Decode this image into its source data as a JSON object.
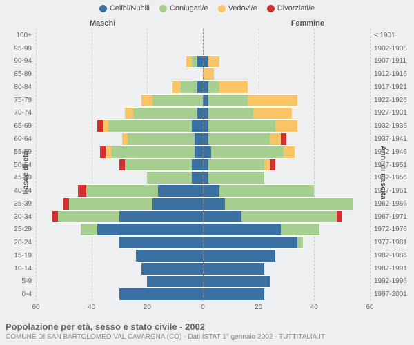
{
  "type": "population-pyramid",
  "background_color": "#edeff0",
  "legend": [
    {
      "label": "Celibi/Nubili",
      "color": "#3a6fa2"
    },
    {
      "label": "Coniugati/e",
      "color": "#a6ce8f"
    },
    {
      "label": "Vedovi/e",
      "color": "#f9c465"
    },
    {
      "label": "Divorziati/e",
      "color": "#d32f2f"
    }
  ],
  "side_labels": {
    "male": "Maschi",
    "female": "Femmine"
  },
  "axis_titles": {
    "left": "Fasce di età",
    "right": "Anni di nascita"
  },
  "age_groups": [
    "100+",
    "95-99",
    "90-94",
    "85-89",
    "80-84",
    "75-79",
    "70-74",
    "65-69",
    "60-64",
    "55-59",
    "50-54",
    "45-49",
    "40-44",
    "35-39",
    "30-34",
    "25-29",
    "20-24",
    "15-19",
    "10-14",
    "5-9",
    "0-4"
  ],
  "birth_years": [
    "≤ 1901",
    "1902-1906",
    "1907-1911",
    "1912-1916",
    "1917-1921",
    "1922-1926",
    "1927-1931",
    "1932-1936",
    "1937-1941",
    "1942-1946",
    "1947-1951",
    "1952-1956",
    "1957-1961",
    "1962-1966",
    "1967-1971",
    "1972-1976",
    "1977-1981",
    "1982-1986",
    "1987-1991",
    "1992-1996",
    "1997-2001"
  ],
  "xmax": 60,
  "xticks": [
    60,
    40,
    20,
    0,
    20,
    40,
    60
  ],
  "grid_positions_pct": [
    0,
    16.67,
    33.33,
    50,
    66.67,
    83.33,
    100
  ],
  "colors": {
    "single": "#3a6fa2",
    "married": "#a6ce8f",
    "widowed": "#f9c465",
    "divorced": "#d32f2f",
    "grid": "#cccccc",
    "centerline": "#888888",
    "text": "#666666"
  },
  "bar_style": {
    "row_gap": 0,
    "fontsize_labels": 10,
    "fontsize_legend": 11
  },
  "data": {
    "male": [
      {
        "s": 0,
        "m": 0,
        "w": 0,
        "d": 0
      },
      {
        "s": 0,
        "m": 0,
        "w": 0,
        "d": 0
      },
      {
        "s": 2,
        "m": 2,
        "w": 2,
        "d": 0
      },
      {
        "s": 0,
        "m": 0,
        "w": 0,
        "d": 0
      },
      {
        "s": 2,
        "m": 6,
        "w": 3,
        "d": 0
      },
      {
        "s": 0,
        "m": 18,
        "w": 4,
        "d": 0
      },
      {
        "s": 2,
        "m": 23,
        "w": 3,
        "d": 0
      },
      {
        "s": 4,
        "m": 30,
        "w": 2,
        "d": 2
      },
      {
        "s": 3,
        "m": 24,
        "w": 2,
        "d": 0
      },
      {
        "s": 3,
        "m": 30,
        "w": 2,
        "d": 2
      },
      {
        "s": 4,
        "m": 24,
        "w": 0,
        "d": 2
      },
      {
        "s": 4,
        "m": 16,
        "w": 0,
        "d": 0
      },
      {
        "s": 16,
        "m": 26,
        "w": 0,
        "d": 3
      },
      {
        "s": 18,
        "m": 30,
        "w": 0,
        "d": 2
      },
      {
        "s": 30,
        "m": 22,
        "w": 0,
        "d": 2
      },
      {
        "s": 38,
        "m": 6,
        "w": 0,
        "d": 0
      },
      {
        "s": 30,
        "m": 0,
        "w": 0,
        "d": 0
      },
      {
        "s": 24,
        "m": 0,
        "w": 0,
        "d": 0
      },
      {
        "s": 22,
        "m": 0,
        "w": 0,
        "d": 0
      },
      {
        "s": 20,
        "m": 0,
        "w": 0,
        "d": 0
      },
      {
        "s": 30,
        "m": 0,
        "w": 0,
        "d": 0
      }
    ],
    "female": [
      {
        "s": 0,
        "m": 0,
        "w": 0,
        "d": 0
      },
      {
        "s": 0,
        "m": 0,
        "w": 0,
        "d": 0
      },
      {
        "s": 2,
        "m": 0,
        "w": 4,
        "d": 0
      },
      {
        "s": 0,
        "m": 0,
        "w": 4,
        "d": 0
      },
      {
        "s": 2,
        "m": 4,
        "w": 10,
        "d": 0
      },
      {
        "s": 2,
        "m": 14,
        "w": 18,
        "d": 0
      },
      {
        "s": 2,
        "m": 16,
        "w": 14,
        "d": 0
      },
      {
        "s": 2,
        "m": 24,
        "w": 8,
        "d": 0
      },
      {
        "s": 2,
        "m": 22,
        "w": 4,
        "d": 2
      },
      {
        "s": 3,
        "m": 26,
        "w": 4,
        "d": 0
      },
      {
        "s": 2,
        "m": 20,
        "w": 2,
        "d": 2
      },
      {
        "s": 2,
        "m": 20,
        "w": 0,
        "d": 0
      },
      {
        "s": 6,
        "m": 34,
        "w": 0,
        "d": 0
      },
      {
        "s": 8,
        "m": 46,
        "w": 0,
        "d": 0
      },
      {
        "s": 14,
        "m": 34,
        "w": 0,
        "d": 2
      },
      {
        "s": 28,
        "m": 14,
        "w": 0,
        "d": 0
      },
      {
        "s": 34,
        "m": 2,
        "w": 0,
        "d": 0
      },
      {
        "s": 26,
        "m": 0,
        "w": 0,
        "d": 0
      },
      {
        "s": 22,
        "m": 0,
        "w": 0,
        "d": 0
      },
      {
        "s": 24,
        "m": 0,
        "w": 0,
        "d": 0
      },
      {
        "s": 22,
        "m": 0,
        "w": 0,
        "d": 0
      }
    ]
  },
  "footer": {
    "title": "Popolazione per età, sesso e stato civile - 2002",
    "subtitle": "COMUNE DI SAN BARTOLOMEO VAL CAVARGNA (CO) - Dati ISTAT 1° gennaio 2002 - TUTTITALIA.IT"
  }
}
